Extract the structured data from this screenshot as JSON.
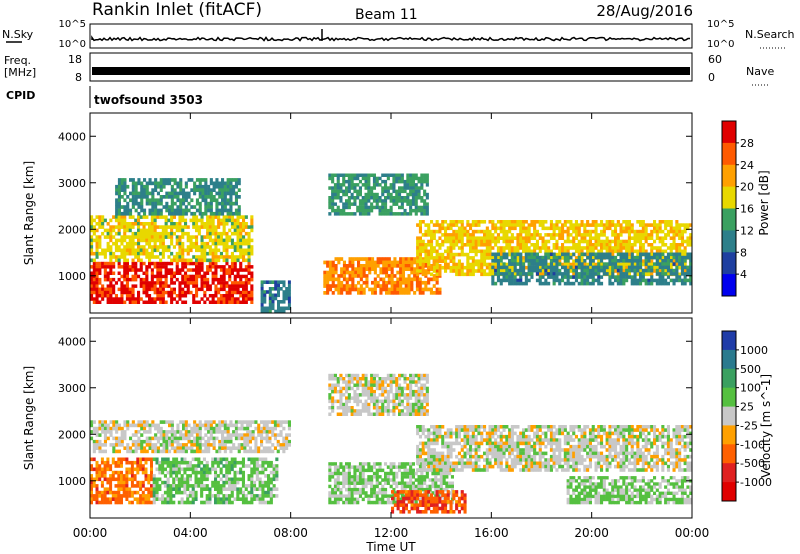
{
  "header": {
    "title": "Rankin Inlet (fitACF)",
    "beam": "Beam 11",
    "date": "28/Aug/2016"
  },
  "top_panels": {
    "nsky_label": "N.Sky",
    "nsearch_label": "N.Search",
    "nsky_ticks": [
      "10^5",
      "10^0"
    ],
    "nsearch_ticks": [
      "10^5",
      "10^0"
    ],
    "freq_label_1": "Freq.",
    "freq_label_2": "[MHz]",
    "freq_ticks": [
      "18",
      "8"
    ],
    "nave_label": "Nave",
    "nave_ticks": [
      "60",
      "0"
    ],
    "cpid_label": "CPID",
    "cpid_value": "twofsound 3503"
  },
  "power_colorbar": {
    "label": "Power [dB]",
    "ticks": [
      "28",
      "24",
      "20",
      "16",
      "12",
      "8",
      "4"
    ],
    "colors": [
      "#e00000",
      "#ff5a00",
      "#ffa000",
      "#e8d800",
      "#3aa060",
      "#2d7f8a",
      "#1e3fa0",
      "#0000ee"
    ]
  },
  "velocity_colorbar": {
    "label": "Velocity [m s^-1]",
    "ticks": [
      "1000",
      "500",
      "100",
      "25",
      "-25",
      "-100",
      "-500",
      "-1000"
    ],
    "colors": [
      "#1f3ca8",
      "#2a7a8e",
      "#3aa060",
      "#55c040",
      "#c8c8c8",
      "#ffa000",
      "#ff6000",
      "#e02020",
      "#e00000"
    ]
  },
  "chart_data": [
    {
      "type": "heatmap",
      "title": "Power",
      "xlabel": "",
      "ylabel": "Slant Range [km]",
      "x_ticks": [
        "00:00",
        "04:00",
        "08:00",
        "12:00",
        "16:00",
        "20:00",
        "00:00"
      ],
      "y_ticks": [
        "1000",
        "2000",
        "3000",
        "4000"
      ],
      "ylim": [
        200,
        4500
      ],
      "xlim_hours": [
        0,
        24
      ],
      "value_unit": "dB",
      "value_range": [
        0,
        30
      ],
      "regions": [
        {
          "t0": 0.0,
          "t1": 6.5,
          "r0": 400,
          "r1": 1300,
          "value": 27
        },
        {
          "t0": 0.0,
          "t1": 6.5,
          "r0": 1300,
          "r1": 2300,
          "value": 17
        },
        {
          "t0": 1.0,
          "t1": 6.0,
          "r0": 2300,
          "r1": 3100,
          "value": 11
        },
        {
          "t0": 6.8,
          "t1": 8.0,
          "r0": 200,
          "r1": 900,
          "value": 9
        },
        {
          "t0": 9.3,
          "t1": 14.0,
          "r0": 600,
          "r1": 1400,
          "value": 22
        },
        {
          "t0": 9.5,
          "t1": 13.5,
          "r0": 2300,
          "r1": 3200,
          "value": 12
        },
        {
          "t0": 13.0,
          "t1": 24.0,
          "r0": 1000,
          "r1": 2200,
          "value": 18
        },
        {
          "t0": 16.0,
          "t1": 24.0,
          "r0": 800,
          "r1": 1500,
          "value": 10
        }
      ]
    },
    {
      "type": "heatmap",
      "title": "Velocity",
      "xlabel": "Time UT",
      "ylabel": "Slant Range [km]",
      "x_ticks": [
        "00:00",
        "04:00",
        "08:00",
        "12:00",
        "16:00",
        "20:00",
        "00:00"
      ],
      "y_ticks": [
        "1000",
        "2000",
        "3000",
        "4000"
      ],
      "ylim": [
        200,
        4500
      ],
      "xlim_hours": [
        0,
        24
      ],
      "value_unit": "m s^-1",
      "value_range": [
        -1000,
        1000
      ],
      "regions": [
        {
          "t0": 0.0,
          "t1": 2.5,
          "r0": 500,
          "r1": 1500,
          "value": -400
        },
        {
          "t0": 2.5,
          "t1": 7.5,
          "r0": 500,
          "r1": 1500,
          "value": 200
        },
        {
          "t0": 0.0,
          "t1": 8.0,
          "r0": 1600,
          "r1": 2300,
          "value": 0
        },
        {
          "t0": 9.5,
          "t1": 14.5,
          "r0": 500,
          "r1": 1400,
          "value": 150
        },
        {
          "t0": 12.0,
          "t1": 15.0,
          "r0": 300,
          "r1": 800,
          "value": -500
        },
        {
          "t0": 9.5,
          "t1": 13.5,
          "r0": 2400,
          "r1": 3300,
          "value": 0
        },
        {
          "t0": 13.0,
          "t1": 24.0,
          "r0": 1200,
          "r1": 2200,
          "value": 0
        },
        {
          "t0": 19.0,
          "t1": 24.0,
          "r0": 500,
          "r1": 1100,
          "value": 150
        }
      ]
    }
  ]
}
